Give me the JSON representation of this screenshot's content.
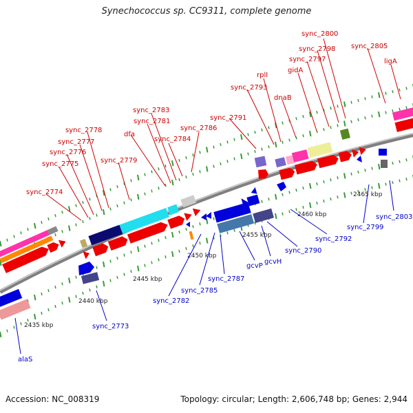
{
  "title": "Synechococcus sp. CC9311, complete genome",
  "footer": {
    "accession": "Accession: NC_008319",
    "summary": "Topology: circular; Length: 2,606,748 bp; Genes: 2,944"
  },
  "colors": {
    "forward_label": "#cc0000",
    "reverse_label": "#0000cc"
  },
  "scale_labels": [
    "2435 kbp",
    "2440 kbp",
    "2445 kbp",
    "2450 kbp",
    "2455 kbp",
    "2460 kbp",
    "2465 kbp"
  ],
  "forward_genes": [
    "sync_2774",
    "sync_2775",
    "sync_2776",
    "sync_2777",
    "sync_2778",
    "sync_2779",
    "dfa",
    "sync_2781",
    "sync_2783",
    "sync_2784",
    "sync_2786",
    "sync_2791",
    "sync_2793",
    "rplI",
    "dnaB",
    "gidA",
    "sync_2797",
    "sync_2798",
    "sync_2800",
    "sync_2805",
    "ligA"
  ],
  "reverse_genes": [
    "alaS",
    "sync_2773",
    "sync_2782",
    "sync_2785",
    "sync_2787",
    "gcvP",
    "gcvH",
    "sync_2790",
    "sync_2792",
    "sync_2799",
    "sync_2803"
  ]
}
